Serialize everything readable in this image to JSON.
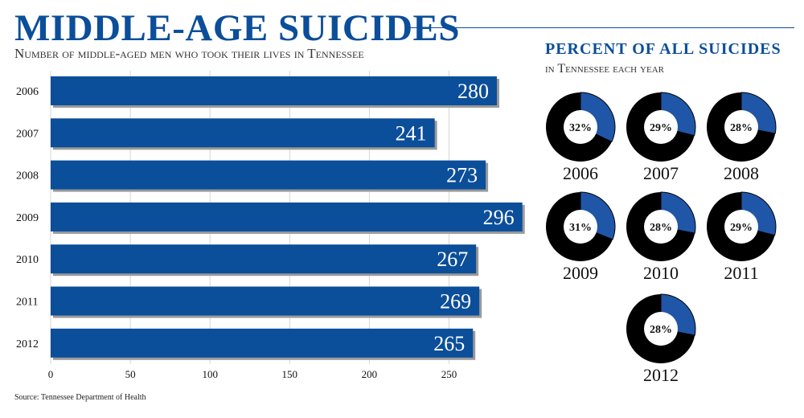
{
  "header": {
    "title": "MIDDLE-AGE SUICIDES",
    "subtitle": "Number of middle-aged men who took their lives in Tennessee"
  },
  "source": "Source: Tennessee Department of Health",
  "colors": {
    "accent": "#0b4e9a",
    "bar": "#0b4e9a",
    "donut_dark": "#000000",
    "donut_blue": "#1f56a8"
  },
  "chart_data": [
    {
      "type": "bar",
      "orientation": "horizontal",
      "title": "MIDDLE-AGE SUICIDES",
      "subtitle": "Number of middle-aged men who took their lives in Tennessee",
      "categories": [
        "2006",
        "2007",
        "2008",
        "2009",
        "2010",
        "2011",
        "2012"
      ],
      "values": [
        280,
        241,
        273,
        296,
        267,
        269,
        265
      ],
      "data_labels": [
        "280",
        "241",
        "273",
        "296",
        "267",
        "269",
        "265"
      ],
      "xlim": [
        0,
        280
      ],
      "xticks": [
        "0",
        "50",
        "100",
        "150",
        "200",
        "250"
      ],
      "grid": true,
      "grid_axis": "x"
    },
    {
      "type": "pie",
      "style": "donut",
      "title": "PERCENT OF ALL SUICIDES",
      "subtitle": "in Tennessee each year",
      "items": [
        {
          "year": "2006",
          "value": 32,
          "label": "32%"
        },
        {
          "year": "2007",
          "value": 29,
          "label": "29%"
        },
        {
          "year": "2008",
          "value": 28,
          "label": "28%"
        },
        {
          "year": "2009",
          "value": 31,
          "label": "31%"
        },
        {
          "year": "2010",
          "value": 28,
          "label": "28%"
        },
        {
          "year": "2011",
          "value": 29,
          "label": "29%"
        },
        {
          "year": "2012",
          "value": 28,
          "label": "28%"
        }
      ]
    }
  ]
}
